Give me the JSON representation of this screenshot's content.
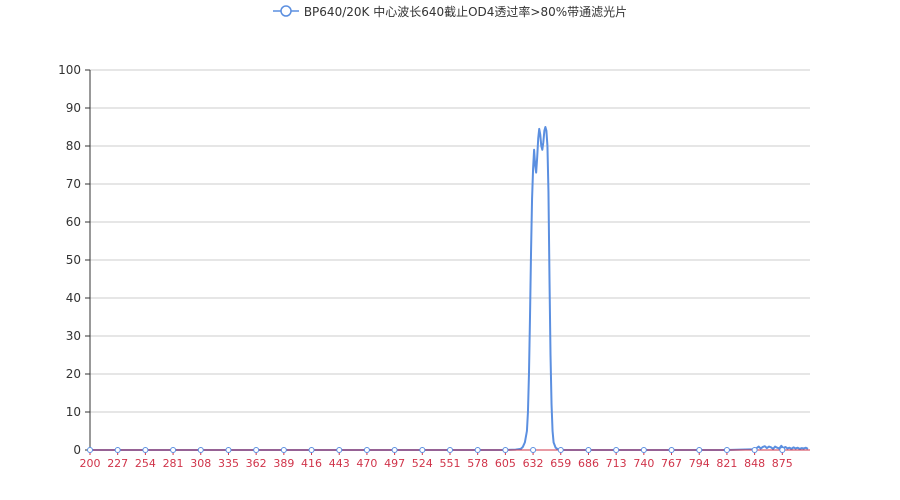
{
  "chart_data": {
    "type": "line",
    "title": "",
    "xlabel": "",
    "ylabel": "",
    "legend_position": "top-center",
    "grid": true,
    "ylim": [
      0,
      100
    ],
    "y_ticks": [
      "0",
      "10",
      "20",
      "30",
      "40",
      "50",
      "60",
      "70",
      "80",
      "90",
      "100"
    ],
    "x_ticks": [
      "200",
      "227",
      "254",
      "281",
      "308",
      "335",
      "362",
      "389",
      "416",
      "443",
      "470",
      "497",
      "524",
      "551",
      "578",
      "605",
      "632",
      "659",
      "686",
      "713",
      "740",
      "767",
      "794",
      "821",
      "848",
      "875"
    ],
    "xlim": [
      200,
      902
    ],
    "colors": {
      "series": "#5b8fe0",
      "x_tick_text": "#d0344a",
      "y_tick_text": "#333333",
      "grid": "#cccccc",
      "axis": "#333333"
    },
    "series": [
      {
        "name": "BP640/20K 中心波长640截止OD4透过率>80%带通滤光片",
        "x": [
          200,
          227,
          254,
          281,
          308,
          335,
          362,
          389,
          416,
          443,
          470,
          497,
          524,
          551,
          578,
          605,
          615,
          620,
          622,
          624,
          626,
          627,
          628,
          629,
          630,
          631,
          632,
          633,
          634,
          635,
          636,
          637,
          638,
          639,
          640,
          641,
          642,
          643,
          644,
          645,
          646,
          647,
          648,
          649,
          650,
          651,
          652,
          654,
          656,
          659,
          686,
          713,
          740,
          767,
          794,
          821,
          848,
          850,
          852,
          854,
          856,
          858,
          860,
          862,
          864,
          866,
          868,
          870,
          872,
          874,
          876,
          878,
          880,
          882,
          884,
          886,
          888,
          890,
          892,
          894,
          896,
          898,
          900
        ],
        "y": [
          0,
          0,
          0,
          0,
          0,
          0,
          0,
          0,
          0,
          0,
          0,
          0,
          0,
          0,
          0,
          0,
          0.1,
          0.3,
          0.8,
          2,
          5,
          10,
          20,
          35,
          52,
          66,
          74,
          79,
          75,
          73,
          77,
          82,
          84.5,
          83,
          80,
          79,
          81,
          84,
          85,
          84,
          80,
          68,
          45,
          25,
          12,
          5,
          2,
          0.6,
          0.2,
          0,
          0,
          0,
          0,
          0,
          0,
          0,
          0.2,
          0.5,
          0.9,
          0.4,
          0.8,
          1.0,
          0.5,
          0.9,
          0.7,
          0.3,
          0.9,
          0.6,
          0.4,
          1.1,
          0.5,
          0.8,
          0.4,
          0.6,
          0.3,
          0.7,
          0.4,
          0.6,
          0.3,
          0.5,
          0.4,
          0.6,
          0.3
        ]
      }
    ]
  }
}
